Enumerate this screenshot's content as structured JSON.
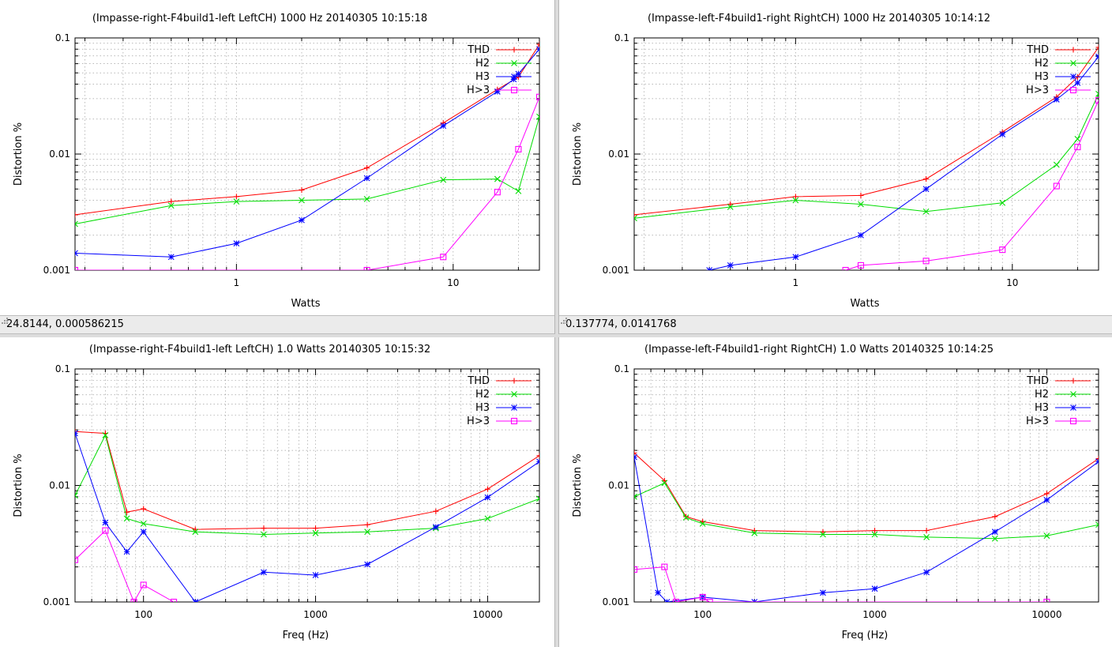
{
  "colors": {
    "THD": "#ff0000",
    "H2": "#00dd00",
    "H3": "#0000ff",
    "H>3": "#ff00ff"
  },
  "panes": [
    {
      "status": "24.8144,  0.000586215",
      "chart": {
        "type": "line",
        "title": "(Impasse-right-F4build1-left LeftCH) 1000 Hz 20140305 10:15:18",
        "xlabel": "Watts",
        "ylabel": "Distortion %",
        "xscale": "log",
        "yscale": "log",
        "xlim": [
          0.18,
          25
        ],
        "ylim": [
          0.001,
          0.1
        ],
        "xticks": [
          {
            "v": 1,
            "label": "1"
          },
          {
            "v": 10,
            "label": "10"
          }
        ],
        "yticks": [
          {
            "v": 0.001,
            "label": "0.001"
          },
          {
            "v": 0.01,
            "label": "0.01"
          },
          {
            "v": 0.1,
            "label": "0.1"
          }
        ],
        "grid": true,
        "legend": "top-right",
        "series": [
          {
            "name": "THD",
            "marker": "plus",
            "x": [
              0.18,
              0.5,
              1,
              2,
              4,
              9,
              16,
              20,
              25
            ],
            "y": [
              0.003,
              0.0039,
              0.0043,
              0.0049,
              0.0076,
              0.0185,
              0.036,
              0.046,
              0.088
            ]
          },
          {
            "name": "H2",
            "marker": "x",
            "x": [
              0.18,
              0.5,
              1,
              2,
              4,
              9,
              16,
              20,
              25
            ],
            "y": [
              0.0025,
              0.0036,
              0.0039,
              0.004,
              0.0041,
              0.006,
              0.0061,
              0.0048,
              0.021
            ]
          },
          {
            "name": "H3",
            "marker": "star",
            "x": [
              0.18,
              0.5,
              1,
              2,
              4,
              9,
              16,
              19,
              20,
              25
            ],
            "y": [
              0.0014,
              0.0013,
              0.0017,
              0.0027,
              0.0062,
              0.0175,
              0.0345,
              0.044,
              0.049,
              0.08
            ]
          },
          {
            "name": "H>3",
            "marker": "square",
            "x": [
              0.18,
              4,
              9,
              16,
              20,
              25
            ],
            "y": [
              0.001,
              0.001,
              0.0013,
              0.0047,
              0.011,
              0.031
            ]
          }
        ]
      }
    },
    {
      "status": "0.137774,  0.0141768",
      "chart": {
        "type": "line",
        "title": "(Impasse-left-F4build1-right RightCH) 1000 Hz 20140305 10:14:12",
        "xlabel": "Watts",
        "ylabel": "Distortion %",
        "xscale": "log",
        "yscale": "log",
        "xlim": [
          0.18,
          25
        ],
        "ylim": [
          0.001,
          0.1
        ],
        "xticks": [
          {
            "v": 1,
            "label": "1"
          },
          {
            "v": 10,
            "label": "10"
          }
        ],
        "yticks": [
          {
            "v": 0.001,
            "label": "0.001"
          },
          {
            "v": 0.01,
            "label": "0.01"
          },
          {
            "v": 0.1,
            "label": "0.1"
          }
        ],
        "grid": true,
        "legend": "top-right",
        "series": [
          {
            "name": "THD",
            "marker": "plus",
            "x": [
              0.18,
              0.5,
              1,
              2,
              4,
              9,
              16,
              20,
              25
            ],
            "y": [
              0.003,
              0.0037,
              0.0043,
              0.0044,
              0.0061,
              0.0155,
              0.031,
              0.046,
              0.083
            ]
          },
          {
            "name": "H2",
            "marker": "x",
            "x": [
              0.18,
              0.5,
              1,
              2,
              4,
              9,
              16,
              20,
              25
            ],
            "y": [
              0.0028,
              0.0035,
              0.004,
              0.0037,
              0.0032,
              0.0038,
              0.0081,
              0.0135,
              0.033
            ]
          },
          {
            "name": "H3",
            "marker": "star",
            "x": [
              0.4,
              0.5,
              1,
              2,
              4,
              9,
              16,
              20,
              25
            ],
            "y": [
              0.001,
              0.0011,
              0.0013,
              0.002,
              0.005,
              0.0148,
              0.0295,
              0.041,
              0.069
            ]
          },
          {
            "name": "H>3",
            "marker": "square",
            "x": [
              1.7,
              2,
              4,
              9,
              16,
              20,
              25
            ],
            "y": [
              0.001,
              0.0011,
              0.0012,
              0.0015,
              0.0053,
              0.0115,
              0.029
            ]
          }
        ]
      }
    },
    {
      "status": "",
      "chart": {
        "type": "line",
        "title": "(Impasse-right-F4build1-left LeftCH) 1.0 Watts 20140305 10:15:32",
        "xlabel": "Freq (Hz)",
        "ylabel": "Distortion %",
        "xscale": "log",
        "yscale": "log",
        "xlim": [
          40,
          20000
        ],
        "ylim": [
          0.001,
          0.1
        ],
        "xticks": [
          {
            "v": 100,
            "label": "100"
          },
          {
            "v": 1000,
            "label": "1000"
          },
          {
            "v": 10000,
            "label": "10000"
          }
        ],
        "yticks": [
          {
            "v": 0.001,
            "label": "0.001"
          },
          {
            "v": 0.01,
            "label": "0.01"
          },
          {
            "v": 0.1,
            "label": "0.1"
          }
        ],
        "grid": true,
        "legend": "top-right",
        "series": [
          {
            "name": "THD",
            "marker": "plus",
            "x": [
              40,
              60,
              80,
              100,
              200,
              500,
              1000,
              2000,
              5000,
              10000,
              20000
            ],
            "y": [
              0.029,
              0.028,
              0.0059,
              0.0063,
              0.0042,
              0.0043,
              0.0043,
              0.0046,
              0.006,
              0.0093,
              0.018
            ]
          },
          {
            "name": "H2",
            "marker": "x",
            "x": [
              40,
              60,
              80,
              100,
              200,
              500,
              1000,
              2000,
              5000,
              10000,
              20000
            ],
            "y": [
              0.0082,
              0.027,
              0.0052,
              0.0047,
              0.004,
              0.0038,
              0.0039,
              0.004,
              0.0043,
              0.0052,
              0.0077
            ]
          },
          {
            "name": "H3",
            "marker": "star",
            "x": [
              40,
              60,
              80,
              100,
              200,
              500,
              1000,
              2000,
              5000,
              10000,
              20000
            ],
            "y": [
              0.028,
              0.0048,
              0.0027,
              0.004,
              0.001,
              0.0018,
              0.0017,
              0.0021,
              0.0044,
              0.0079,
              0.016
            ]
          },
          {
            "name": "H>3",
            "marker": "square",
            "x": [
              40,
              60,
              88,
              100,
              150
            ],
            "y": [
              0.0023,
              0.0041,
              0.001,
              0.0014,
              0.001
            ]
          }
        ]
      }
    },
    {
      "status": "",
      "chart": {
        "type": "line",
        "title": "(Impasse-left-F4build1-right RightCH) 1.0 Watts 20140325 10:14:25",
        "xlabel": "Freq (Hz)",
        "ylabel": "Distortion %",
        "xscale": "log",
        "yscale": "log",
        "xlim": [
          40,
          20000
        ],
        "ylim": [
          0.001,
          0.1
        ],
        "xticks": [
          {
            "v": 100,
            "label": "100"
          },
          {
            "v": 1000,
            "label": "1000"
          },
          {
            "v": 10000,
            "label": "10000"
          }
        ],
        "yticks": [
          {
            "v": 0.001,
            "label": "0.001"
          },
          {
            "v": 0.01,
            "label": "0.01"
          },
          {
            "v": 0.1,
            "label": "0.1"
          }
        ],
        "grid": true,
        "legend": "top-right",
        "series": [
          {
            "name": "THD",
            "marker": "plus",
            "x": [
              40,
              60,
              80,
              100,
              200,
              500,
              1000,
              2000,
              5000,
              10000,
              20000
            ],
            "y": [
              0.019,
              0.011,
              0.0054,
              0.0049,
              0.0041,
              0.004,
              0.0041,
              0.0041,
              0.0054,
              0.0085,
              0.017
            ]
          },
          {
            "name": "H2",
            "marker": "x",
            "x": [
              40,
              60,
              80,
              100,
              200,
              500,
              1000,
              2000,
              5000,
              10000,
              20000
            ],
            "y": [
              0.008,
              0.0105,
              0.0053,
              0.0047,
              0.0039,
              0.0038,
              0.0038,
              0.0036,
              0.0035,
              0.0037,
              0.0046
            ]
          },
          {
            "name": "H3",
            "marker": "star",
            "x": [
              40,
              55,
              62,
              100,
              200,
              500,
              1000,
              2000,
              5000,
              10000,
              20000
            ],
            "y": [
              0.0175,
              0.0012,
              0.001,
              0.0011,
              0.001,
              0.0012,
              0.0013,
              0.0018,
              0.004,
              0.0075,
              0.016
            ]
          },
          {
            "name": "H>3",
            "marker": "square",
            "x": [
              40,
              60,
              70,
              100,
              110,
              10000
            ],
            "y": [
              0.0019,
              0.002,
              0.001,
              0.0011,
              0.001,
              0.001
            ]
          }
        ]
      }
    }
  ]
}
